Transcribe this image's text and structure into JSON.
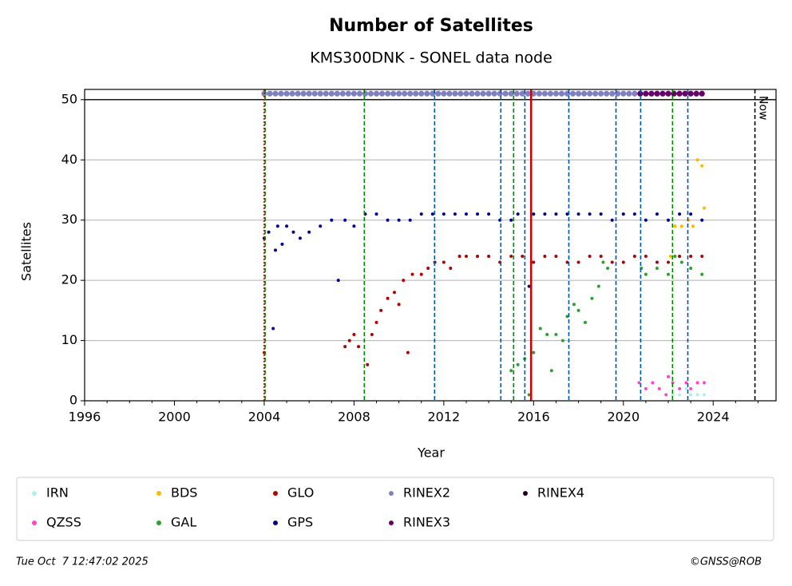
{
  "chart_data": {
    "type": "scatter",
    "title": "Number of Satellites",
    "subtitle": "KMS300DNK - SONEL data node",
    "x_label": "Year",
    "y_label": "Satellites",
    "xlim": [
      1996,
      2026.8
    ],
    "ylim": [
      0,
      51.7
    ],
    "xticks": [
      1996,
      2000,
      2004,
      2008,
      2012,
      2016,
      2020,
      2024
    ],
    "xminorticks": [
      1997,
      1998,
      1999,
      2001,
      2002,
      2003,
      2005,
      2006,
      2007,
      2009,
      2010,
      2011,
      2013,
      2014,
      2015,
      2017,
      2018,
      2019,
      2021,
      2022,
      2023,
      2025,
      2026
    ],
    "yticks": [
      0,
      10,
      20,
      30,
      40,
      50
    ],
    "grid": true,
    "hline": 50,
    "vlines": [
      {
        "x": 2004.04,
        "color": "#008000",
        "style": "dashed"
      },
      {
        "x": 2004.0,
        "color": "#d00000",
        "style": "dotted"
      },
      {
        "x": 2008.46,
        "color": "#008000",
        "style": "dashed"
      },
      {
        "x": 2011.59,
        "color": "#0055aa",
        "style": "dashed"
      },
      {
        "x": 2014.54,
        "color": "#0055aa",
        "style": "dashed"
      },
      {
        "x": 2015.11,
        "color": "#008000",
        "style": "dashed"
      },
      {
        "x": 2015.61,
        "color": "#0055aa",
        "style": "dashed"
      },
      {
        "x": 2015.89,
        "color": "#d00000",
        "style": "solid"
      },
      {
        "x": 2017.57,
        "color": "#0055aa",
        "style": "dashed"
      },
      {
        "x": 2019.67,
        "color": "#0055aa",
        "style": "dashed"
      },
      {
        "x": 2020.77,
        "color": "#0055aa",
        "style": "dashed"
      },
      {
        "x": 2022.19,
        "color": "#008000",
        "style": "dashed"
      },
      {
        "x": 2022.87,
        "color": "#0055aa",
        "style": "dashed"
      }
    ],
    "now_line": {
      "x": 2025.86,
      "label": "Now"
    },
    "series": [
      {
        "name": "IRN",
        "color": "#aaf0f0",
        "x": [
          2022.2,
          2022.5,
          2022.8,
          2023.0,
          2023.3,
          2023.6
        ],
        "values": [
          1,
          1,
          2,
          1,
          1,
          1
        ]
      },
      {
        "name": "QZSS",
        "color": "#ff44cc",
        "x": [
          2020.7,
          2021.0,
          2021.3,
          2021.6,
          2021.9,
          2022.0,
          2022.2,
          2022.5,
          2022.8,
          2023.0,
          2023.3,
          2023.6
        ],
        "values": [
          3,
          2,
          3,
          2,
          1,
          4,
          3,
          2,
          3,
          2,
          3,
          3
        ]
      },
      {
        "name": "BDS",
        "color": "#ffb800",
        "x": [
          2022.1,
          2022.3,
          2022.6,
          2022.9,
          2023.1,
          2023.3,
          2023.5,
          2023.6
        ],
        "values": [
          24,
          29,
          29,
          30,
          29,
          40,
          39,
          32
        ]
      },
      {
        "name": "GAL",
        "color": "#2ca02c",
        "x": [
          2015.0,
          2015.3,
          2015.6,
          2015.8,
          2016.0,
          2016.3,
          2016.6,
          2016.8,
          2017.0,
          2017.3,
          2017.5,
          2017.8,
          2018.0,
          2018.3,
          2018.6,
          2018.9,
          2019.1,
          2019.3,
          2020.8,
          2021.0,
          2021.5,
          2022.0,
          2022.3,
          2022.6,
          2023.0,
          2023.5
        ],
        "values": [
          5,
          6,
          7,
          1,
          8,
          12,
          11,
          5,
          11,
          10,
          14,
          16,
          15,
          13,
          17,
          19,
          23,
          22,
          22,
          21,
          22,
          21,
          24,
          23,
          22,
          21
        ]
      },
      {
        "name": "GLO",
        "color": "#b00000",
        "x": [
          2004.0,
          2007.6,
          2007.8,
          2008.0,
          2008.2,
          2008.6,
          2008.8,
          2009.0,
          2009.2,
          2009.5,
          2009.8,
          2010.0,
          2010.2,
          2010.4,
          2010.6,
          2011.0,
          2011.3,
          2011.6,
          2012.0,
          2012.3,
          2012.7,
          2013.0,
          2013.5,
          2014.0,
          2014.5,
          2015.0,
          2015.5,
          2016.0,
          2016.5,
          2017.0,
          2017.5,
          2018.0,
          2018.5,
          2019.0,
          2019.5,
          2020.0,
          2020.5,
          2021.0,
          2021.5,
          2022.0,
          2022.5,
          2023.0,
          2023.5
        ],
        "values": [
          8,
          9,
          10,
          11,
          9,
          6,
          11,
          13,
          15,
          17,
          18,
          16,
          20,
          8,
          21,
          21,
          22,
          23,
          23,
          22,
          24,
          24,
          24,
          24,
          23,
          24,
          24,
          23,
          24,
          24,
          23,
          23,
          24,
          24,
          23,
          23,
          24,
          24,
          23,
          23,
          24,
          24,
          24
        ]
      },
      {
        "name": "GPS",
        "color": "#00008b",
        "x": [
          2004.0,
          2004.2,
          2004.4,
          2004.5,
          2004.6,
          2004.8,
          2005.0,
          2005.3,
          2005.6,
          2006.0,
          2006.5,
          2007.0,
          2007.3,
          2007.6,
          2008.0,
          2008.5,
          2009.0,
          2009.5,
          2010.0,
          2010.5,
          2011.0,
          2011.5,
          2012.0,
          2012.5,
          2013.0,
          2013.5,
          2014.0,
          2014.5,
          2015.0,
          2015.3,
          2015.8,
          2016.0,
          2016.5,
          2017.0,
          2017.5,
          2018.0,
          2018.5,
          2019.0,
          2019.5,
          2020.0,
          2020.5,
          2021.0,
          2021.5,
          2022.0,
          2022.5,
          2023.0,
          2023.5
        ],
        "values": [
          27,
          28,
          12,
          25,
          29,
          26,
          29,
          28,
          27,
          28,
          29,
          30,
          20,
          30,
          29,
          31,
          31,
          30,
          30,
          30,
          31,
          31,
          31,
          31,
          31,
          31,
          31,
          30,
          30,
          31,
          19,
          31,
          31,
          31,
          31,
          31,
          31,
          31,
          30,
          31,
          31,
          30,
          31,
          30,
          31,
          31,
          30
        ]
      },
      {
        "name": "RINEX2",
        "color": "#8080c0",
        "x": [
          2004,
          2004.25,
          2004.5,
          2004.75,
          2005,
          2005.25,
          2005.5,
          2005.75,
          2006,
          2006.25,
          2006.5,
          2006.75,
          2007,
          2007.25,
          2007.5,
          2007.75,
          2008,
          2008.25,
          2008.5,
          2008.75,
          2009,
          2009.25,
          2009.5,
          2009.75,
          2010,
          2010.25,
          2010.5,
          2010.75,
          2011,
          2011.25,
          2011.5,
          2011.75,
          2012,
          2012.25,
          2012.5,
          2012.75,
          2013,
          2013.25,
          2013.5,
          2013.75,
          2014,
          2014.25,
          2014.5,
          2014.75,
          2015,
          2015.25,
          2015.5,
          2015.75,
          2016,
          2016.25,
          2016.5,
          2016.75,
          2017,
          2017.25,
          2017.5,
          2017.75,
          2018,
          2018.25,
          2018.5,
          2018.75,
          2019,
          2019.25,
          2019.5,
          2019.75,
          2020,
          2020.25,
          2020.5,
          2020.75
        ],
        "values": [
          51,
          51,
          51,
          51,
          51,
          51,
          51,
          51,
          51,
          51,
          51,
          51,
          51,
          51,
          51,
          51,
          51,
          51,
          51,
          51,
          51,
          51,
          51,
          51,
          51,
          51,
          51,
          51,
          51,
          51,
          51,
          51,
          51,
          51,
          51,
          51,
          51,
          51,
          51,
          51,
          51,
          51,
          51,
          51,
          51,
          51,
          51,
          51,
          51,
          51,
          51,
          51,
          51,
          51,
          51,
          51,
          51,
          51,
          51,
          51,
          51,
          51,
          51,
          51,
          51,
          51,
          51,
          51
        ]
      },
      {
        "name": "RINEX3",
        "color": "#660066",
        "x": [
          2020.75,
          2021,
          2021.25,
          2021.5,
          2021.75,
          2022,
          2022.25,
          2022.5,
          2022.75,
          2023,
          2023.25,
          2023.5
        ],
        "values": [
          51,
          51,
          51,
          51,
          51,
          51,
          51,
          51,
          51,
          51,
          51,
          51
        ]
      },
      {
        "name": "RINEX4",
        "color": "#200020",
        "x": [],
        "values": []
      }
    ]
  },
  "footer": {
    "date": "Tue Oct  7 12:47:02 2025",
    "credit": "©GNSS@ROB"
  }
}
